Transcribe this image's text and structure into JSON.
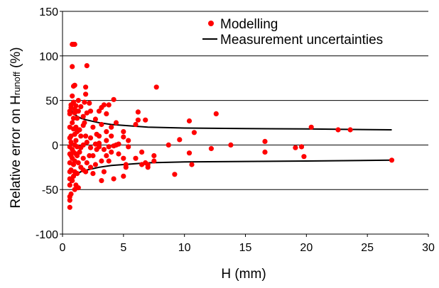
{
  "chart_data": {
    "type": "scatter",
    "xlabel": "H (mm)",
    "ylabel": {
      "prefix": "Relative error on H",
      "subscript": "runoff",
      "suffix": " (%)"
    },
    "xlim": [
      0,
      30
    ],
    "ylim": [
      -100,
      150
    ],
    "xticks": [
      0,
      5,
      10,
      15,
      20,
      25,
      30
    ],
    "yticks": [
      -100,
      -50,
      0,
      50,
      100,
      150
    ],
    "grid": "horizontal",
    "legend_position": "top-right",
    "series": [
      {
        "name": "Modelling",
        "kind": "scatter",
        "color": "#ff0000",
        "points": [
          [
            0.6,
            -70
          ],
          [
            0.6,
            -62
          ],
          [
            0.6,
            -58
          ],
          [
            0.6,
            -45
          ],
          [
            0.6,
            -38
          ],
          [
            0.6,
            -30
          ],
          [
            0.6,
            -20
          ],
          [
            0.6,
            -10
          ],
          [
            0.6,
            -2
          ],
          [
            0.6,
            8
          ],
          [
            0.6,
            20
          ],
          [
            0.6,
            35
          ],
          [
            0.6,
            38
          ],
          [
            0.7,
            -55
          ],
          [
            0.7,
            -28
          ],
          [
            0.7,
            -12
          ],
          [
            0.7,
            3
          ],
          [
            0.7,
            10
          ],
          [
            0.7,
            42
          ],
          [
            0.7,
            45
          ],
          [
            0.8,
            -40
          ],
          [
            0.8,
            -15
          ],
          [
            0.8,
            -5
          ],
          [
            0.8,
            25
          ],
          [
            0.8,
            55
          ],
          [
            0.8,
            88
          ],
          [
            0.8,
            113
          ],
          [
            0.9,
            -35
          ],
          [
            0.9,
            -22
          ],
          [
            0.9,
            -8
          ],
          [
            0.9,
            18
          ],
          [
            0.9,
            30
          ],
          [
            0.9,
            48
          ],
          [
            0.9,
            66
          ],
          [
            0.9,
            113
          ],
          [
            1.0,
            -50
          ],
          [
            1.0,
            -30
          ],
          [
            1.0,
            -18
          ],
          [
            1.0,
            0
          ],
          [
            1.0,
            12
          ],
          [
            1.0,
            36
          ],
          [
            1.0,
            40
          ],
          [
            1.0,
            67
          ],
          [
            1.0,
            113
          ],
          [
            1.1,
            -45
          ],
          [
            1.1,
            -10
          ],
          [
            1.1,
            5
          ],
          [
            1.1,
            20
          ],
          [
            1.1,
            44
          ],
          [
            1.2,
            -32
          ],
          [
            1.2,
            -12
          ],
          [
            1.2,
            -2
          ],
          [
            1.2,
            15
          ],
          [
            1.2,
            30
          ],
          [
            1.3,
            -48
          ],
          [
            1.3,
            -20
          ],
          [
            1.3,
            38
          ],
          [
            1.3,
            50
          ],
          [
            1.4,
            -8
          ],
          [
            1.4,
            17
          ],
          [
            1.5,
            -25
          ],
          [
            1.5,
            -3
          ],
          [
            1.5,
            10
          ],
          [
            1.5,
            43
          ],
          [
            1.7,
            -28
          ],
          [
            1.7,
            -15
          ],
          [
            1.7,
            0
          ],
          [
            1.7,
            22
          ],
          [
            1.7,
            32
          ],
          [
            1.8,
            25
          ],
          [
            1.8,
            48
          ],
          [
            1.9,
            -30
          ],
          [
            1.9,
            10
          ],
          [
            1.9,
            57
          ],
          [
            1.9,
            65
          ],
          [
            2.0,
            89
          ],
          [
            2.0,
            -20
          ],
          [
            2.0,
            3
          ],
          [
            2.0,
            36
          ],
          [
            2.2,
            -12
          ],
          [
            2.2,
            47
          ],
          [
            2.3,
            -25
          ],
          [
            2.3,
            -3
          ],
          [
            2.3,
            8
          ],
          [
            2.3,
            38
          ],
          [
            2.5,
            -12
          ],
          [
            2.5,
            -32
          ],
          [
            2.5,
            20
          ],
          [
            2.7,
            -22
          ],
          [
            2.7,
            1
          ],
          [
            2.7,
            29
          ],
          [
            2.8,
            -5
          ],
          [
            2.8,
            12
          ],
          [
            3.0,
            -2
          ],
          [
            3.0,
            2
          ],
          [
            3.0,
            38
          ],
          [
            3.0,
            10
          ],
          [
            3.2,
            -18
          ],
          [
            3.2,
            -40
          ],
          [
            3.2,
            23
          ],
          [
            3.2,
            42
          ],
          [
            3.4,
            -30
          ],
          [
            3.4,
            -5
          ],
          [
            3.4,
            45
          ],
          [
            3.6,
            -12
          ],
          [
            3.6,
            15
          ],
          [
            3.6,
            35
          ],
          [
            3.6,
            5
          ],
          [
            3.8,
            -2
          ],
          [
            3.8,
            -18
          ],
          [
            3.8,
            45
          ],
          [
            4.0,
            -8
          ],
          [
            4.0,
            20
          ],
          [
            4.0,
            10
          ],
          [
            4.2,
            -38
          ],
          [
            4.2,
            -1
          ],
          [
            4.2,
            51
          ],
          [
            4.4,
            0
          ],
          [
            4.4,
            25
          ],
          [
            4.6,
            -10
          ],
          [
            4.6,
            1
          ],
          [
            5.0,
            -15
          ],
          [
            5.0,
            -35
          ],
          [
            5.0,
            15
          ],
          [
            5.0,
            9
          ],
          [
            5.2,
            -25
          ],
          [
            5.2,
            -22
          ],
          [
            5.4,
            -2
          ],
          [
            5.4,
            5
          ],
          [
            6.0,
            23
          ],
          [
            6.0,
            -15
          ],
          [
            6.2,
            37
          ],
          [
            6.2,
            28
          ],
          [
            6.5,
            -22
          ],
          [
            6.5,
            -8
          ],
          [
            6.8,
            -20
          ],
          [
            6.8,
            28
          ],
          [
            7.0,
            -22
          ],
          [
            7.0,
            -25
          ],
          [
            7.5,
            -12
          ],
          [
            7.5,
            -18
          ],
          [
            7.7,
            65
          ],
          [
            8.7,
            0
          ],
          [
            9.2,
            -33
          ],
          [
            9.6,
            6
          ],
          [
            10.4,
            -9
          ],
          [
            10.4,
            27
          ],
          [
            10.6,
            -22
          ],
          [
            10.8,
            14
          ],
          [
            12.2,
            -4
          ],
          [
            12.6,
            35
          ],
          [
            13.8,
            0
          ],
          [
            16.6,
            4
          ],
          [
            16.6,
            -8
          ],
          [
            19.1,
            -3
          ],
          [
            19.6,
            -2
          ],
          [
            19.8,
            -13
          ],
          [
            20.4,
            20
          ],
          [
            22.6,
            17
          ],
          [
            23.6,
            17
          ],
          [
            27.0,
            -17
          ]
        ]
      },
      {
        "name": "Measurement uncertainties",
        "kind": "line",
        "color": "#000000",
        "upper": [
          [
            0.6,
            44
          ],
          [
            0.8,
            37
          ],
          [
            1.0,
            34
          ],
          [
            1.5,
            30
          ],
          [
            2.0,
            28
          ],
          [
            3.0,
            25
          ],
          [
            4.0,
            23
          ],
          [
            5.0,
            22
          ],
          [
            7.0,
            20
          ],
          [
            10.0,
            19
          ],
          [
            15.0,
            18.5
          ],
          [
            20.0,
            18
          ],
          [
            27.0,
            17
          ]
        ],
        "lower": [
          [
            0.6,
            -44
          ],
          [
            0.8,
            -37
          ],
          [
            1.0,
            -34
          ],
          [
            1.5,
            -30
          ],
          [
            2.0,
            -28
          ],
          [
            3.0,
            -25
          ],
          [
            4.0,
            -23
          ],
          [
            5.0,
            -22
          ],
          [
            7.0,
            -20
          ],
          [
            10.0,
            -19
          ],
          [
            15.0,
            -18.5
          ],
          [
            20.0,
            -18
          ],
          [
            27.0,
            -17
          ]
        ]
      }
    ]
  }
}
